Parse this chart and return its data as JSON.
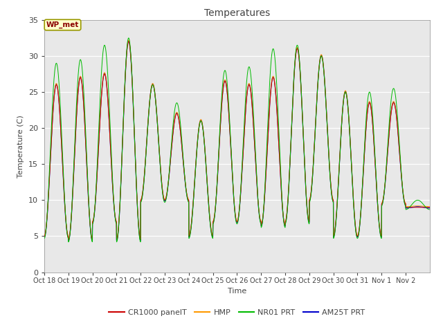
{
  "title": "Temperatures",
  "xlabel": "Time",
  "ylabel": "Temperature (C)",
  "ylim": [
    0,
    35
  ],
  "background_color": "#ffffff",
  "plot_bg_color": "#e8e8e8",
  "grid_color": "#ffffff",
  "tick_labels": [
    "Oct 18",
    "Oct 19",
    "Oct 20",
    "Oct 21",
    "Oct 22",
    "Oct 23",
    "Oct 24",
    "Oct 25",
    "Oct 26",
    "Oct 27",
    "Oct 28",
    "Oct 29",
    "Oct 30",
    "Oct 31",
    "Nov 1",
    "Nov 2"
  ],
  "annotation_text": "WP_met",
  "annotation_bg": "#ffffcc",
  "annotation_border": "#999900",
  "annotation_text_color": "#8b0000",
  "series_colors": [
    "#cc0000",
    "#ff9900",
    "#00bb00",
    "#0000cc"
  ],
  "series_labels": [
    "CR1000 panelT",
    "HMP",
    "NR01 PRT",
    "AM25T PRT"
  ],
  "n_days": 16,
  "daily_min": [
    5.0,
    4.5,
    7.0,
    4.5,
    10.0,
    10.0,
    5.0,
    7.0,
    7.0,
    6.5,
    7.0,
    10.0,
    5.0,
    5.0,
    9.5,
    9.0
  ],
  "daily_max": [
    26.0,
    27.0,
    27.5,
    32.0,
    26.0,
    22.0,
    21.0,
    26.5,
    26.0,
    27.0,
    31.0,
    30.0,
    25.0,
    23.5,
    23.5,
    9.0
  ],
  "nr01_extra_max": [
    3.0,
    2.5,
    4.0,
    0.5,
    0.0,
    1.5,
    0.0,
    1.5,
    2.5,
    4.0,
    0.5,
    0.0,
    0.0,
    1.5,
    2.0,
    1.0
  ],
  "yticks": [
    0,
    5,
    10,
    15,
    20,
    25,
    30,
    35
  ],
  "title_fontsize": 10,
  "axis_label_fontsize": 8,
  "tick_fontsize": 7,
  "legend_fontsize": 8
}
